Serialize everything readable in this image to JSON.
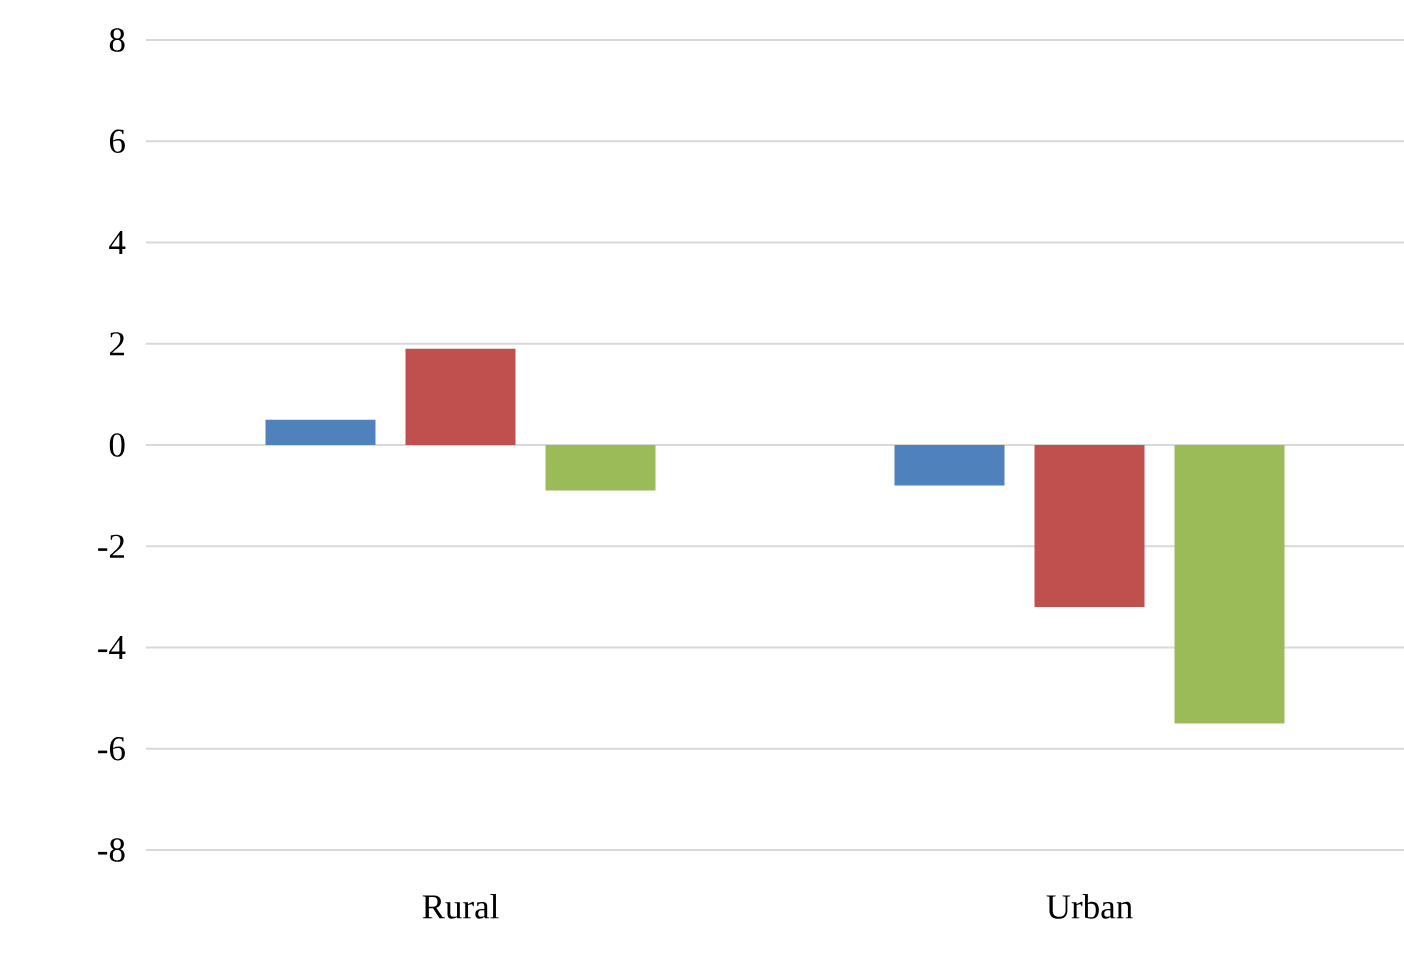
{
  "chart_data": {
    "type": "bar",
    "categories": [
      "Rural",
      "Urban"
    ],
    "series": [
      {
        "color": "#4f81bd",
        "values": [
          0.5,
          -0.8
        ]
      },
      {
        "color": "#c0504d",
        "values": [
          1.9,
          -3.2
        ]
      },
      {
        "color": "#9bbb59",
        "values": [
          -0.9,
          -5.5
        ]
      }
    ],
    "ylim": [
      -8,
      8
    ],
    "yticks": [
      -8,
      -6,
      -4,
      -2,
      0,
      2,
      4,
      6,
      8
    ],
    "grid": "y"
  }
}
